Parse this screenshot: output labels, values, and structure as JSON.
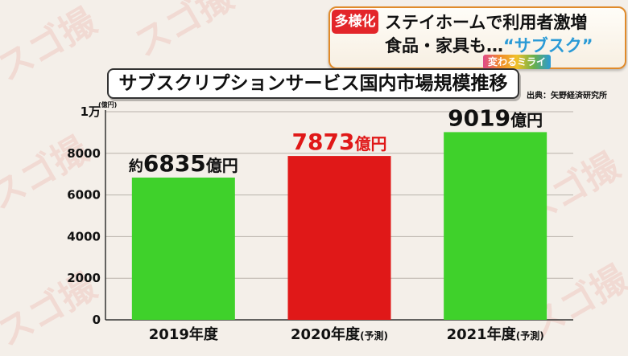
{
  "caption": {
    "badge": "多様化",
    "line1": "ステイホームで利用者激増",
    "line2_prefix": "食品・家具も…",
    "line2_highlight": "“サブスク”",
    "corner_logo": "変わるミライ"
  },
  "watermark": "スゴ撮",
  "source": "出典：矢野経済研究所",
  "unit_label": "(億円)",
  "colors": {
    "green": "#3fd12b",
    "red": "#e01818",
    "badge_red": "#e3262a",
    "accent_blue": "#2a9ad6"
  },
  "chart_data": {
    "type": "bar",
    "title": "サブスクリプションサービス国内市場規模推移",
    "categories": [
      "2019年度",
      "2020年度",
      "2021年度"
    ],
    "category_notes": [
      "",
      "(予測)",
      "(予測)"
    ],
    "values": [
      6835,
      7873,
      9019
    ],
    "value_labels": [
      {
        "prefix": "約",
        "number": "6835",
        "suffix": "億円"
      },
      {
        "prefix": "",
        "number": "7873",
        "suffix": "億円"
      },
      {
        "prefix": "",
        "number": "9019",
        "suffix": "億円"
      }
    ],
    "bar_colors": [
      "#3fd12b",
      "#e01818",
      "#3fd12b"
    ],
    "label_colors": [
      "#111111",
      "#e01818",
      "#111111"
    ],
    "ylim": [
      0,
      10000
    ],
    "yticks": [
      0,
      2000,
      4000,
      6000,
      8000,
      10000
    ],
    "ytick_labels": [
      "0",
      "2000",
      "4000",
      "6000",
      "8000",
      "1万"
    ],
    "grid": true
  }
}
